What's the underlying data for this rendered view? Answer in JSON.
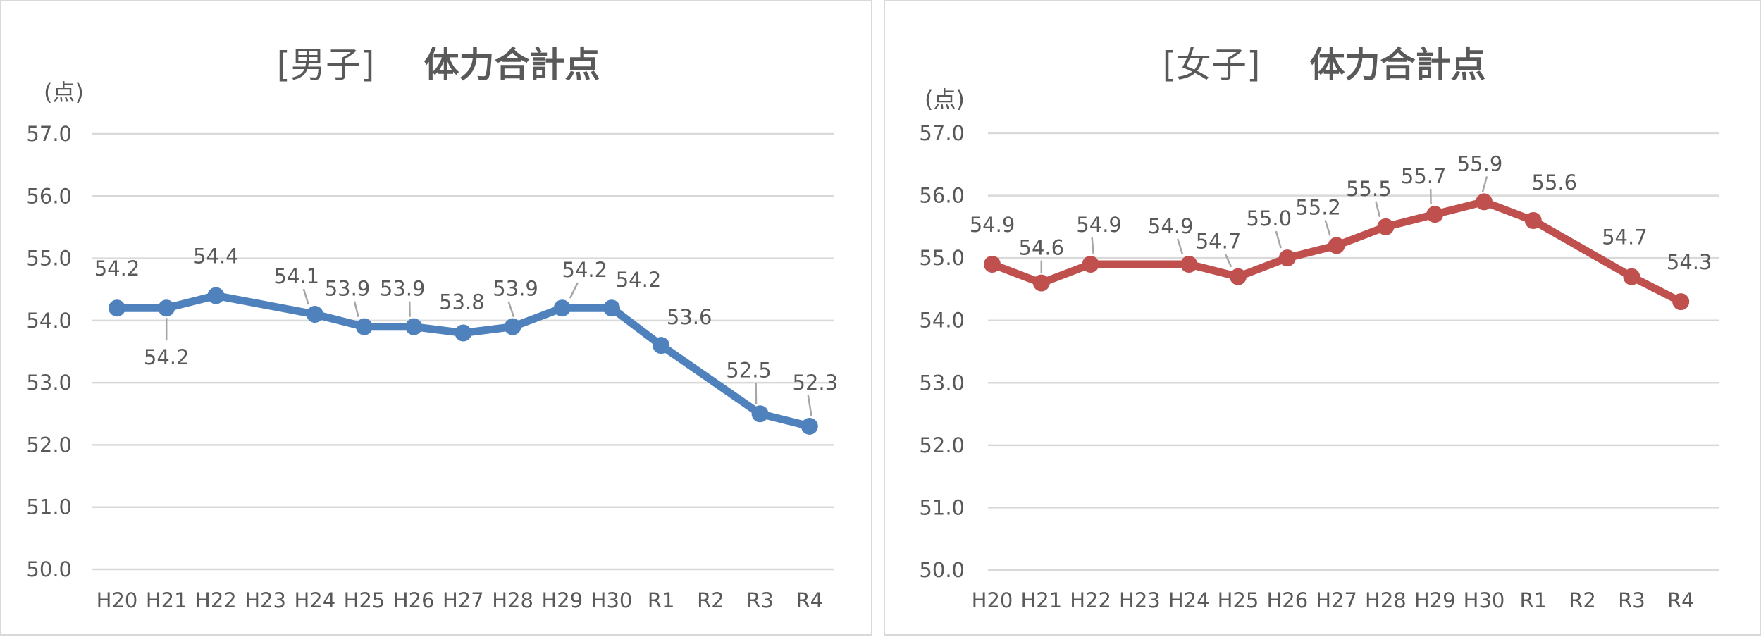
{
  "chart_data": [
    {
      "type": "line",
      "title_bracket": "[男子]",
      "title": "体力合計点",
      "ylabel": "(点)",
      "ylim": [
        50.0,
        57.0
      ],
      "yticks": [
        "50.0",
        "51.0",
        "52.0",
        "53.0",
        "54.0",
        "55.0",
        "56.0",
        "57.0"
      ],
      "categories": [
        "H20",
        "H21",
        "H22",
        "H23",
        "H24",
        "H25",
        "H26",
        "H27",
        "H28",
        "H29",
        "H30",
        "R1",
        "R2",
        "R3",
        "R4"
      ],
      "series": [
        {
          "color": "#4f81bd",
          "values": [
            54.2,
            54.2,
            54.4,
            null,
            54.1,
            53.9,
            53.9,
            53.8,
            53.9,
            54.2,
            54.2,
            53.6,
            null,
            52.5,
            52.3
          ],
          "labels": [
            "54.2",
            "54.2",
            "54.4",
            "",
            "54.1",
            "53.9",
            "53.9",
            "53.8",
            "53.9",
            "54.2",
            "54.2",
            "53.6",
            "",
            "52.5",
            "52.3"
          ]
        }
      ],
      "grid": true,
      "legend": "none"
    },
    {
      "type": "line",
      "title_bracket": "[女子]",
      "title": "体力合計点",
      "ylabel": "(点)",
      "ylim": [
        50.0,
        57.0
      ],
      "yticks": [
        "50.0",
        "51.0",
        "52.0",
        "53.0",
        "54.0",
        "55.0",
        "56.0",
        "57.0"
      ],
      "categories": [
        "H20",
        "H21",
        "H22",
        "H23",
        "H24",
        "H25",
        "H26",
        "H27",
        "H28",
        "H29",
        "H30",
        "R1",
        "R2",
        "R3",
        "R4"
      ],
      "series": [
        {
          "color": "#c0504d",
          "values": [
            54.9,
            54.6,
            54.9,
            null,
            54.9,
            54.7,
            55.0,
            55.2,
            55.5,
            55.7,
            55.9,
            55.6,
            null,
            54.7,
            54.3
          ],
          "labels": [
            "54.9",
            "54.6",
            "54.9",
            "",
            "54.9",
            "54.7",
            "55.0",
            "55.2",
            "55.5",
            "55.7",
            "55.9",
            "55.6",
            "",
            "54.7",
            "54.3"
          ]
        }
      ],
      "grid": true,
      "legend": "none"
    }
  ]
}
